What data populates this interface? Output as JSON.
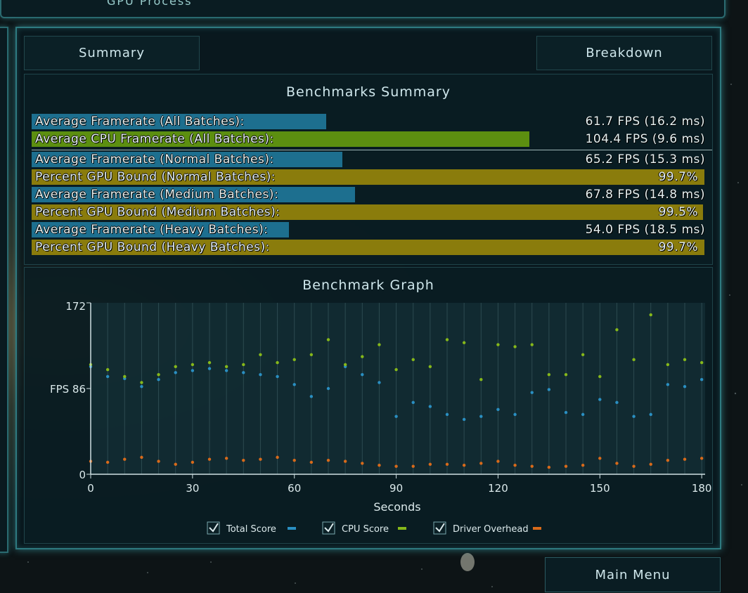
{
  "background_partial_title": "GPU Process",
  "tabs": {
    "summary": "Summary",
    "breakdown": "Breakdown"
  },
  "summary": {
    "title": "Benchmarks Summary",
    "rows": [
      {
        "label": "Average Framerate (All Batches):",
        "value": "61.7 FPS (16.2 ms)",
        "fraction": 0.436,
        "color": "#1d6f8f"
      },
      {
        "label": "Average CPU Framerate (All Batches):",
        "value": "104.4 FPS (9.6 ms)",
        "fraction": 0.738,
        "color": "#5c8f10"
      },
      {
        "label": "Average Framerate (Normal Batches):",
        "value": "65.2 FPS (15.3 ms)",
        "fraction": 0.46,
        "color": "#1d6f8f"
      },
      {
        "label": "Percent GPU Bound (Normal Batches):",
        "value": "99.7%",
        "fraction": 0.997,
        "color": "#8a7c0c"
      },
      {
        "label": "Average Framerate (Medium Batches):",
        "value": "67.8 FPS (14.8 ms)",
        "fraction": 0.479,
        "color": "#1d6f8f"
      },
      {
        "label": "Percent GPU Bound (Medium Batches):",
        "value": "99.5%",
        "fraction": 0.995,
        "color": "#8a7c0c"
      },
      {
        "label": "Average Framerate (Heavy Batches):",
        "value": "54.0 FPS (18.5 ms)",
        "fraction": 0.381,
        "color": "#1d6f8f"
      },
      {
        "label": "Percent GPU Bound (Heavy Batches):",
        "value": "99.7%",
        "fraction": 0.997,
        "color": "#8a7c0c"
      }
    ]
  },
  "graph": {
    "title": "Benchmark Graph",
    "y_tick_labels": [
      "172",
      "FPS 86",
      "0"
    ],
    "legend": [
      {
        "label": "Total Score",
        "checked": true
      },
      {
        "label": "CPU Score",
        "checked": true
      },
      {
        "label": "Driver Overhead",
        "checked": true
      }
    ]
  },
  "chart_data": {
    "type": "scatter",
    "title": "Benchmark Graph",
    "xlabel": "Seconds",
    "ylabel": "FPS",
    "xlim": [
      0,
      181
    ],
    "ylim": [
      0,
      172
    ],
    "x_ticks": [
      0,
      30,
      60,
      90,
      120,
      150,
      180
    ],
    "y_ticks": [
      0,
      86,
      172
    ],
    "grid": true,
    "legend_position": "bottom",
    "series": [
      {
        "name": "Total Score",
        "color": "#2a8fc2",
        "x": [
          0,
          5,
          10,
          15,
          20,
          25,
          30,
          35,
          40,
          45,
          50,
          55,
          60,
          65,
          70,
          75,
          80,
          85,
          90,
          95,
          100,
          105,
          110,
          115,
          120,
          125,
          130,
          135,
          140,
          145,
          150,
          155,
          160,
          165,
          170,
          175,
          180
        ],
        "values": [
          108,
          98,
          96,
          88,
          95,
          102,
          104,
          106,
          104,
          102,
          100,
          98,
          90,
          78,
          86,
          108,
          100,
          92,
          58,
          72,
          68,
          60,
          55,
          58,
          65,
          60,
          82,
          85,
          62,
          60,
          75,
          72,
          58,
          60,
          90,
          88,
          95
        ]
      },
      {
        "name": "CPU Score",
        "color": "#86b81a",
        "x": [
          0,
          5,
          10,
          15,
          20,
          25,
          30,
          35,
          40,
          45,
          50,
          55,
          60,
          65,
          70,
          75,
          80,
          85,
          90,
          95,
          100,
          105,
          110,
          115,
          120,
          125,
          130,
          135,
          140,
          145,
          150,
          155,
          160,
          165,
          170,
          175,
          180
        ],
        "values": [
          110,
          105,
          98,
          92,
          100,
          108,
          110,
          112,
          108,
          110,
          120,
          112,
          115,
          120,
          135,
          110,
          118,
          130,
          105,
          115,
          108,
          135,
          132,
          95,
          130,
          128,
          130,
          100,
          100,
          120,
          98,
          145,
          115,
          160,
          110,
          115,
          112
        ]
      },
      {
        "name": "Driver Overhead",
        "color": "#d86a1a",
        "x": [
          0,
          5,
          10,
          15,
          20,
          25,
          30,
          35,
          40,
          45,
          50,
          55,
          60,
          65,
          70,
          75,
          80,
          85,
          90,
          95,
          100,
          105,
          110,
          115,
          120,
          125,
          130,
          135,
          140,
          145,
          150,
          155,
          160,
          165,
          170,
          175,
          180
        ],
        "values": [
          13,
          12,
          15,
          17,
          13,
          10,
          12,
          15,
          16,
          14,
          15,
          17,
          14,
          12,
          14,
          13,
          11,
          9,
          8,
          8,
          10,
          10,
          9,
          11,
          13,
          9,
          8,
          7,
          8,
          9,
          16,
          11,
          8,
          10,
          14,
          15,
          16
        ]
      }
    ]
  },
  "main_menu": "Main Menu"
}
